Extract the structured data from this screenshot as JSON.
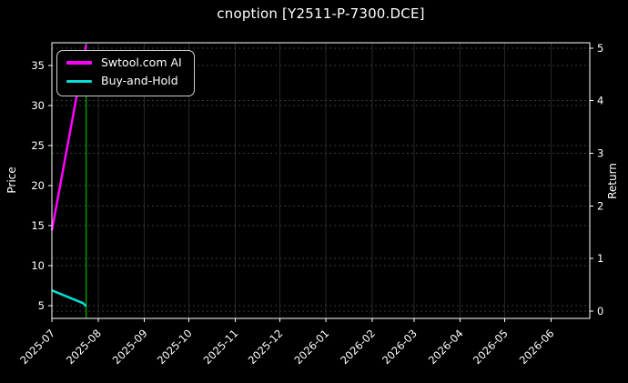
{
  "chart_data": {
    "type": "line",
    "title": "cnoption [Y2511-P-7300.DCE]",
    "ylabel_left": "Price",
    "ylabel_right": "Return",
    "x_tick_labels": [
      "2025-07",
      "2025-08",
      "2025-09",
      "2025-10",
      "2025-11",
      "2025-12",
      "2026-01",
      "2026-02",
      "2026-03",
      "2026-04",
      "2026-05",
      "2026-06"
    ],
    "x_domain": [
      "2025-07-01",
      "2026-06-27"
    ],
    "x_tick_rotation_deg": 45,
    "y_ticks_left": [
      5,
      10,
      15,
      20,
      25,
      30,
      35
    ],
    "y_ticks_right": [
      0,
      1,
      2,
      3,
      4,
      5
    ],
    "ylim_left": [
      3.4,
      37.85
    ],
    "ylim_right": [
      -0.14,
      5.1
    ],
    "grid": true,
    "legend_position": "upper-left",
    "series": [
      {
        "name": "Swtool.com AI",
        "color": "#ff00ff",
        "axis": "left",
        "points": [
          [
            "2025-07-01",
            14.4
          ],
          [
            "2025-07-24",
            37.6
          ]
        ]
      },
      {
        "name": "Buy-and-Hold",
        "color": "#00ded5",
        "axis": "left",
        "points": [
          [
            "2025-07-01",
            6.9
          ],
          [
            "2025-07-22",
            5.3
          ],
          [
            "2025-07-24",
            4.9
          ]
        ]
      }
    ],
    "annotations": [
      {
        "type": "vline",
        "date": "2025-07-24",
        "color": "#00a000"
      }
    ],
    "colors": {
      "background": "#000000",
      "frame": "#ffffff",
      "grid_vertical": "#282828",
      "grid_horizontal": "#3c3c3c",
      "tick": "#ffffff",
      "text": "#ffffff"
    }
  }
}
